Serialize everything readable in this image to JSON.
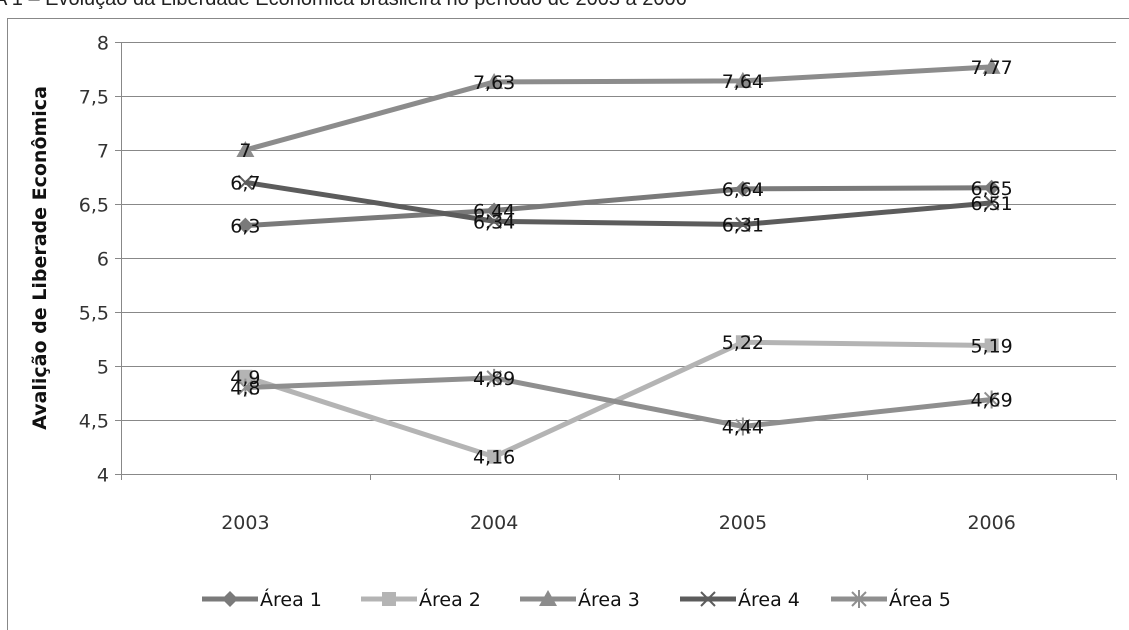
{
  "title": "A 1 – Evolução da Liberdade Econômica brasileira no período de 2003 a 2006",
  "chart_data": {
    "type": "line",
    "title": "A 1 – Evolução da Liberdade Econômica brasileira no período de 2003 a 2006",
    "xlabel": "",
    "ylabel": "Avalição de Liberade Econômica",
    "categories": [
      "2003",
      "2004",
      "2005",
      "2006"
    ],
    "ylim": [
      4,
      8
    ],
    "yticks": [
      "4",
      "4,5",
      "5",
      "5,5",
      "6",
      "6,5",
      "7",
      "7,5",
      "8"
    ],
    "grid": true,
    "legend_position": "bottom",
    "series": [
      {
        "name": "Área 1",
        "values": [
          6.3,
          6.44,
          6.64,
          6.65
        ],
        "labels": [
          "6,3",
          "6,44",
          "6,64",
          "6,65"
        ],
        "color": "#7a7a7a",
        "marker": "diamond"
      },
      {
        "name": "Área 2",
        "values": [
          4.9,
          4.16,
          5.22,
          5.19
        ],
        "labels": [
          "4,9",
          "4,16",
          "5,22",
          "5,19"
        ],
        "color": "#b4b4b4",
        "marker": "square"
      },
      {
        "name": "Área 3",
        "values": [
          7,
          7.63,
          7.64,
          7.77
        ],
        "labels": [
          "7",
          "7,63",
          "7,64",
          "7,77"
        ],
        "color": "#8c8c8c",
        "marker": "triangle"
      },
      {
        "name": "Área 4",
        "values": [
          6.7,
          6.34,
          6.31,
          6.51
        ],
        "labels": [
          "6,7",
          "6,34",
          "6,31",
          "6,51"
        ],
        "color": "#5c5c5c",
        "marker": "x"
      },
      {
        "name": "Área 5",
        "values": [
          4.8,
          4.89,
          4.44,
          4.69
        ],
        "labels": [
          "4,8",
          "4,89",
          "4,44",
          "4,69"
        ],
        "color": "#8f8f8f",
        "marker": "star"
      }
    ]
  }
}
